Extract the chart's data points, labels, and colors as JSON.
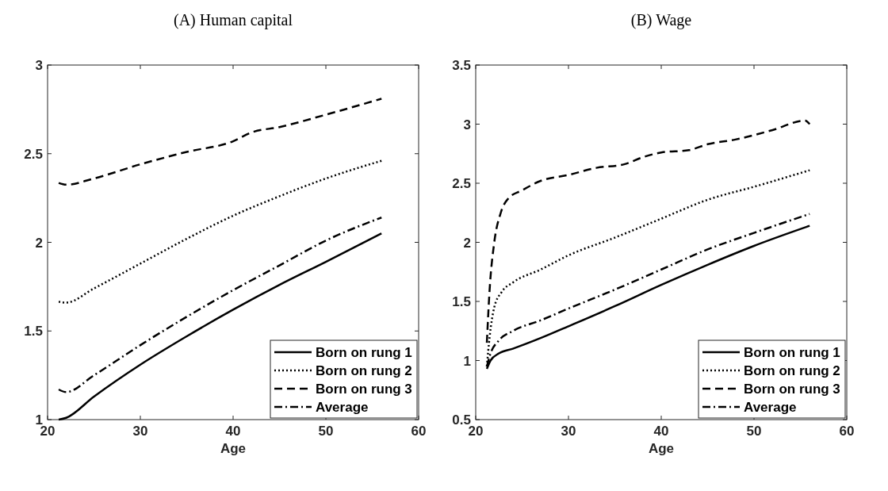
{
  "chart_data": [
    {
      "type": "line",
      "title": "(A) Human capital",
      "xlabel": "Age",
      "xlim": [
        20,
        60
      ],
      "xticks": [
        20,
        30,
        40,
        50,
        60
      ],
      "ylim": [
        1,
        3
      ],
      "yticks": [
        1,
        1.5,
        2,
        2.5,
        3
      ],
      "legend": "bottom right",
      "grid": false,
      "series": [
        {
          "name": "Born on rung 1",
          "color": "#000000",
          "line_style": "solid",
          "x": [
            21.2,
            22,
            25,
            30,
            35,
            40,
            45,
            50,
            56
          ],
          "values": [
            1.0,
            1.01,
            1.13,
            1.31,
            1.47,
            1.62,
            1.76,
            1.89,
            2.05
          ]
        },
        {
          "name": "Born on rung 2",
          "color": "#000000",
          "line_style": "dotted",
          "x": [
            21.2,
            22,
            25,
            30,
            35,
            40,
            45,
            50,
            56
          ],
          "values": [
            1.665,
            1.66,
            1.74,
            1.88,
            2.02,
            2.15,
            2.26,
            2.36,
            2.46
          ]
        },
        {
          "name": "Born on rung 3",
          "color": "#000000",
          "line_style": "dashed",
          "x": [
            21.2,
            22,
            25,
            30,
            35,
            40,
            42,
            45,
            50,
            56
          ],
          "values": [
            2.335,
            2.325,
            2.36,
            2.44,
            2.51,
            2.57,
            2.62,
            2.65,
            2.72,
            2.81
          ]
        },
        {
          "name": "Average",
          "color": "#000000",
          "line_style": "dashdot",
          "x": [
            21.2,
            22,
            25,
            30,
            35,
            40,
            45,
            50,
            56
          ],
          "values": [
            1.17,
            1.155,
            1.25,
            1.42,
            1.58,
            1.73,
            1.87,
            2.01,
            2.14
          ]
        }
      ]
    },
    {
      "type": "line",
      "title": "(B) Wage",
      "xlabel": "Age",
      "xlim": [
        20,
        60
      ],
      "xticks": [
        20,
        30,
        40,
        50,
        60
      ],
      "ylim": [
        0.5,
        3.5
      ],
      "yticks": [
        0.5,
        1,
        1.5,
        2,
        2.5,
        3,
        3.5
      ],
      "legend": "bottom right",
      "grid": false,
      "series": [
        {
          "name": "Born on rung 1",
          "color": "#000000",
          "line_style": "solid",
          "x": [
            21.2,
            21.6,
            22.5,
            24,
            27,
            30,
            35,
            40,
            45,
            50,
            56
          ],
          "values": [
            0.93,
            1.0,
            1.06,
            1.1,
            1.19,
            1.29,
            1.46,
            1.64,
            1.81,
            1.97,
            2.14
          ]
        },
        {
          "name": "Born on rung 2",
          "color": "#000000",
          "line_style": "dotted",
          "x": [
            21.2,
            21.5,
            22,
            22.8,
            24,
            27,
            30,
            35,
            40,
            45,
            50,
            56
          ],
          "values": [
            0.95,
            1.2,
            1.45,
            1.58,
            1.66,
            1.77,
            1.89,
            2.04,
            2.2,
            2.36,
            2.47,
            2.61
          ]
        },
        {
          "name": "Born on rung 3",
          "color": "#000000",
          "line_style": "dashed",
          "x": [
            21.2,
            21.5,
            22,
            22.7,
            23.5,
            25,
            27,
            30,
            33,
            36,
            38,
            40,
            43,
            45,
            48,
            52,
            55.5,
            56
          ],
          "values": [
            1.15,
            1.6,
            2.0,
            2.25,
            2.37,
            2.44,
            2.52,
            2.57,
            2.63,
            2.66,
            2.72,
            2.76,
            2.78,
            2.83,
            2.87,
            2.95,
            3.03,
            3.0
          ]
        },
        {
          "name": "Average",
          "color": "#000000",
          "line_style": "dashdot",
          "x": [
            21.2,
            21.6,
            22.5,
            24,
            27,
            30,
            35,
            40,
            45,
            50,
            56
          ],
          "values": [
            0.95,
            1.06,
            1.17,
            1.25,
            1.34,
            1.44,
            1.6,
            1.77,
            1.94,
            2.08,
            2.24
          ]
        }
      ]
    }
  ]
}
